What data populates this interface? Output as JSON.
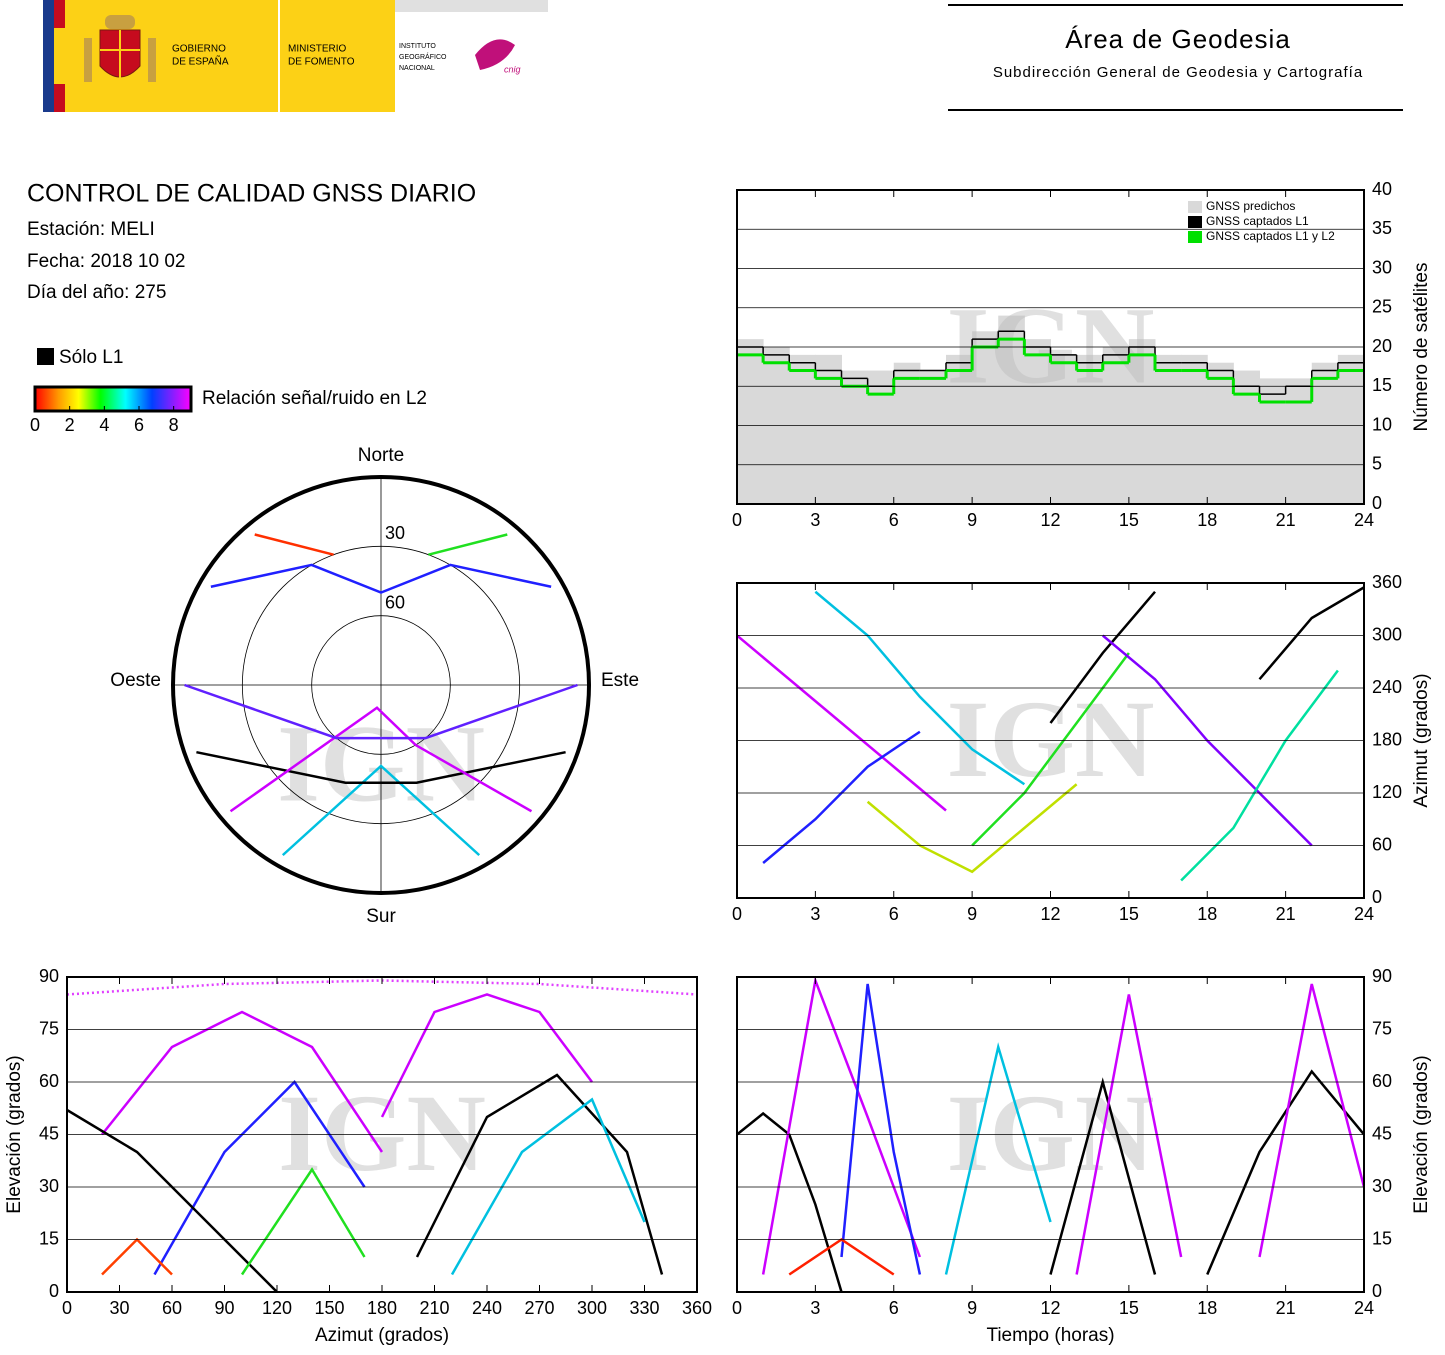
{
  "header": {
    "gov": [
      "GOBIERNO",
      "DE ESPAÑA"
    ],
    "ministry": [
      "MINISTERIO",
      "DE FOMENTO"
    ],
    "institute": [
      "INSTITUTO",
      "GEOGRÁFICO",
      "NACIONAL"
    ],
    "brand": "cnig",
    "area": "Área de Geodesia",
    "subtitle": "Subdirección General de Geodesia y Cartografía"
  },
  "info": {
    "title": "CONTROL DE CALIDAD GNSS DIARIO",
    "station": "Estación: MELI",
    "date": "Fecha: 2018 10 02",
    "doy": "Día del año: 275",
    "l1_only": "Sólo L1",
    "colorbar": {
      "label": "Relación señal/ruido en L2",
      "lim": [
        0,
        9
      ],
      "ticks": [
        0,
        2,
        4,
        6,
        8
      ]
    }
  },
  "chart_data": [
    {
      "type": "step",
      "watermark": "IGN",
      "ylabel": "Número de satélites",
      "xlim": [
        0,
        24
      ],
      "xticks": [
        0,
        3,
        6,
        9,
        12,
        15,
        18,
        21,
        24
      ],
      "ylim": [
        0,
        40
      ],
      "yticks": [
        0,
        5,
        10,
        15,
        20,
        25,
        30,
        35,
        40
      ],
      "grid": true,
      "x": [
        0,
        1,
        2,
        3,
        4,
        5,
        6,
        7,
        8,
        9,
        10,
        11,
        12,
        13,
        14,
        15,
        16,
        17,
        18,
        19,
        20,
        21,
        22,
        23
      ],
      "series": [
        {
          "name": "GNSS predichos",
          "color": "#d9d9d9",
          "values": [
            21,
            20,
            19,
            19,
            17,
            17,
            18,
            17,
            19,
            22,
            24,
            21,
            19,
            19,
            20,
            21,
            19,
            19,
            18,
            17,
            16,
            16,
            18,
            19
          ]
        },
        {
          "name": "GNSS captados L1",
          "color": "#000000",
          "values": [
            20,
            19,
            18,
            17,
            16,
            15,
            17,
            17,
            18,
            21,
            22,
            20,
            19,
            18,
            19,
            20,
            18,
            18,
            17,
            15,
            14,
            15,
            17,
            18
          ]
        },
        {
          "name": "GNSS captados L1 y L2",
          "color": "#00e000",
          "values": [
            19,
            18,
            17,
            16,
            15,
            14,
            16,
            16,
            17,
            20,
            21,
            19,
            18,
            17,
            18,
            19,
            17,
            17,
            16,
            14,
            13,
            13,
            16,
            17
          ]
        }
      ]
    },
    {
      "type": "tracks",
      "watermark": "IGN",
      "ylabel": "Azimut (grados)",
      "xlim": [
        0,
        24
      ],
      "xticks": [
        0,
        3,
        6,
        9,
        12,
        15,
        18,
        21,
        24
      ],
      "ylim": [
        0,
        360
      ],
      "yticks": [
        0,
        60,
        120,
        180,
        240,
        300,
        360
      ],
      "grid": true,
      "series": [
        {
          "color": "#cc00ff",
          "x": [
            0,
            2,
            4,
            6,
            8
          ],
          "values": [
            300,
            250,
            200,
            150,
            100
          ]
        },
        {
          "color": "#2020ff",
          "x": [
            1,
            3,
            5,
            7
          ],
          "values": [
            40,
            90,
            150,
            190
          ]
        },
        {
          "color": "#00c0e0",
          "x": [
            3,
            5,
            7,
            9,
            11
          ],
          "values": [
            350,
            300,
            230,
            170,
            130
          ]
        },
        {
          "color": "#20e020",
          "x": [
            9,
            11,
            13,
            15
          ],
          "values": [
            60,
            120,
            200,
            280
          ]
        },
        {
          "color": "#000000",
          "x": [
            12,
            14,
            16
          ],
          "values": [
            200,
            280,
            350
          ]
        },
        {
          "color": "#8000ff",
          "x": [
            14,
            16,
            18,
            20,
            22
          ],
          "values": [
            300,
            250,
            180,
            120,
            60
          ]
        },
        {
          "color": "#00e0a0",
          "x": [
            17,
            19,
            21,
            23
          ],
          "values": [
            20,
            80,
            180,
            260
          ]
        },
        {
          "color": "#000000",
          "x": [
            20,
            22,
            24
          ],
          "values": [
            250,
            320,
            355
          ]
        },
        {
          "color": "#c0e000",
          "x": [
            5,
            7,
            9,
            11,
            13
          ],
          "values": [
            110,
            60,
            30,
            80,
            130
          ]
        }
      ]
    },
    {
      "type": "tracks",
      "watermark": "IGN",
      "xlabel": "Azimut (grados)",
      "ylabel": "Elevación (grados)",
      "xlim": [
        0,
        360
      ],
      "xticks": [
        0,
        30,
        60,
        90,
        120,
        150,
        180,
        210,
        240,
        270,
        300,
        330,
        360
      ],
      "ylim": [
        0,
        90
      ],
      "yticks": [
        0,
        15,
        30,
        45,
        60,
        75,
        90
      ],
      "grid": true,
      "series": [
        {
          "color": "#cc00ff",
          "x": [
            20,
            60,
            100,
            140,
            180
          ],
          "values": [
            45,
            70,
            80,
            70,
            40
          ]
        },
        {
          "color": "#2020ff",
          "x": [
            50,
            90,
            130,
            170
          ],
          "values": [
            5,
            40,
            60,
            30
          ]
        },
        {
          "color": "#000000",
          "x": [
            0,
            40,
            80,
            120
          ],
          "values": [
            52,
            40,
            20,
            0
          ]
        },
        {
          "color": "#000000",
          "x": [
            200,
            240,
            280,
            320,
            340
          ],
          "values": [
            10,
            50,
            62,
            40,
            5
          ]
        },
        {
          "color": "#cc00ff",
          "x": [
            180,
            210,
            240,
            270,
            300
          ],
          "values": [
            50,
            80,
            85,
            80,
            60
          ]
        },
        {
          "color": "#ff4000",
          "x": [
            20,
            40,
            60
          ],
          "values": [
            5,
            15,
            5
          ]
        },
        {
          "color": "#00c0e0",
          "x": [
            220,
            260,
            300,
            330
          ],
          "values": [
            5,
            40,
            55,
            20
          ]
        },
        {
          "color": "#e040ff",
          "x": [
            0,
            90,
            180,
            270,
            360
          ],
          "values": [
            85,
            88,
            89,
            88,
            85
          ]
        },
        {
          "color": "#20e020",
          "x": [
            100,
            140,
            170
          ],
          "values": [
            5,
            35,
            10
          ]
        }
      ]
    },
    {
      "type": "tracks",
      "watermark": "IGN",
      "xlabel": "Tiempo (horas)",
      "ylabel": "Elevación (grados)",
      "xlim": [
        0,
        24
      ],
      "xticks": [
        0,
        3,
        6,
        9,
        12,
        15,
        18,
        21,
        24
      ],
      "ylim": [
        0,
        90
      ],
      "yticks": [
        0,
        15,
        30,
        45,
        60,
        75,
        90
      ],
      "grid": true,
      "series": [
        {
          "color": "#000000",
          "x": [
            0,
            1,
            2,
            3,
            4
          ],
          "values": [
            45,
            51,
            45,
            25,
            0
          ]
        },
        {
          "color": "#cc00ff",
          "x": [
            1,
            3,
            5,
            7
          ],
          "values": [
            5,
            89,
            50,
            10
          ]
        },
        {
          "color": "#2020ff",
          "x": [
            4,
            5,
            6,
            7
          ],
          "values": [
            10,
            88,
            40,
            5
          ]
        },
        {
          "color": "#00c0e0",
          "x": [
            8,
            10,
            12
          ],
          "values": [
            5,
            70,
            20
          ]
        },
        {
          "color": "#000000",
          "x": [
            12,
            14,
            16
          ],
          "values": [
            5,
            60,
            5
          ]
        },
        {
          "color": "#cc00ff",
          "x": [
            13,
            15,
            17
          ],
          "values": [
            5,
            85,
            10
          ]
        },
        {
          "color": "#000000",
          "x": [
            18,
            20,
            22,
            24
          ],
          "values": [
            5,
            40,
            63,
            45
          ]
        },
        {
          "color": "#cc00ff",
          "x": [
            20,
            22,
            24
          ],
          "values": [
            10,
            88,
            30
          ]
        },
        {
          "color": "#ff2000",
          "x": [
            2,
            4,
            6
          ],
          "values": [
            5,
            15,
            5
          ]
        }
      ]
    },
    {
      "type": "polar",
      "watermark": "IGN",
      "directions": {
        "north": "Norte",
        "south": "Sur",
        "east": "Este",
        "west": "Oeste"
      },
      "rlim": [
        90,
        0
      ],
      "rings": [
        30,
        60
      ],
      "series": [
        {
          "color": "#2020ff",
          "x": [
            300,
            330,
            0,
            30,
            60
          ],
          "values": [
            5,
            30,
            50,
            30,
            5
          ]
        },
        {
          "color": "#00c0e0",
          "x": [
            210,
            180,
            150
          ],
          "values": [
            5,
            55,
            5
          ]
        },
        {
          "color": "#000000",
          "x": [
            250,
            200,
            160,
            110
          ],
          "values": [
            5,
            45,
            45,
            5
          ]
        },
        {
          "color": "#ff3000",
          "x": [
            320,
            340
          ],
          "values": [
            5,
            30
          ]
        },
        {
          "color": "#20e020",
          "x": [
            40,
            20
          ],
          "values": [
            5,
            30
          ]
        },
        {
          "color": "#cc00ff",
          "x": [
            230,
            190,
            150,
            130
          ],
          "values": [
            5,
            80,
            60,
            5
          ]
        },
        {
          "color": "#6020ff",
          "x": [
            270,
            220,
            140,
            90
          ],
          "values": [
            5,
            60,
            60,
            5
          ]
        }
      ]
    }
  ]
}
